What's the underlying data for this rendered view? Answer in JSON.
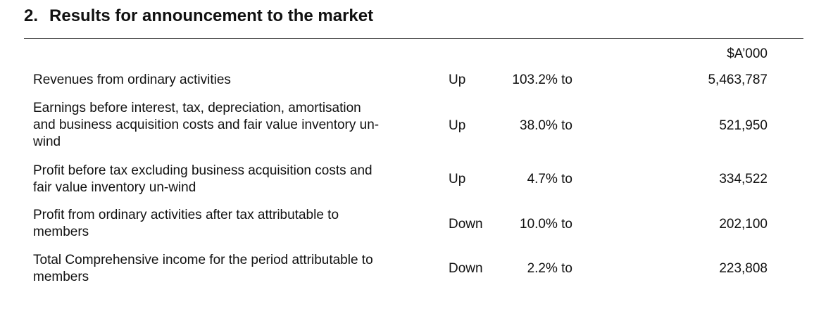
{
  "section": {
    "number": "2.",
    "title": "Results for announcement to the market"
  },
  "unit_label": "$A’000",
  "rows": [
    {
      "desc_lines": [
        "Revenues from ordinary activities"
      ],
      "direction": "Up",
      "percent": "103.2% to",
      "amount": "5,463,787"
    },
    {
      "desc_lines": [
        "Earnings before interest, tax, depreciation, amortisation",
        "and business acquisition costs and fair value inventory un-",
        "wind"
      ],
      "direction": "Up",
      "percent": "38.0% to",
      "amount": "521,950"
    },
    {
      "desc_lines": [
        "Profit before tax excluding business acquisition costs and",
        "fair value inventory un-wind"
      ],
      "direction": "Up",
      "percent": "4.7% to",
      "amount": "334,522"
    },
    {
      "desc_lines": [
        "Profit from ordinary activities after tax attributable to",
        "members"
      ],
      "direction": "Down",
      "percent": "10.0% to",
      "amount": "202,100"
    },
    {
      "desc_lines": [
        "Total Comprehensive income for the period attributable to",
        "members"
      ],
      "direction": "Down",
      "percent": "2.2% to",
      "amount": "223,808"
    }
  ]
}
